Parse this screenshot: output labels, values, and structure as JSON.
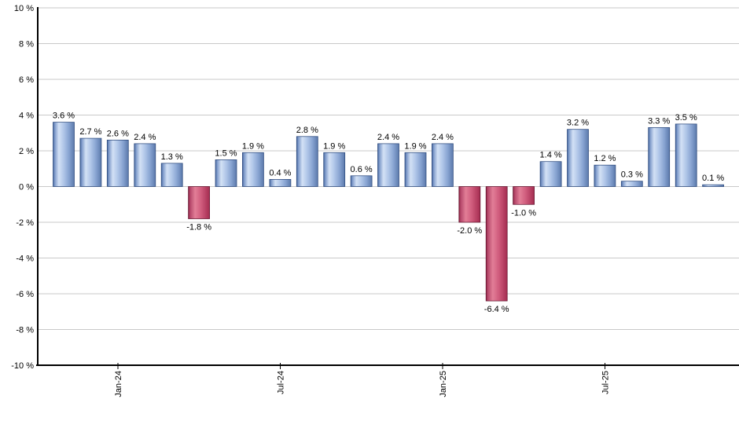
{
  "chart_data": {
    "type": "bar",
    "title": "",
    "xlabel": "",
    "ylabel": "",
    "unit": "%",
    "values": [
      3.6,
      2.7,
      2.6,
      2.4,
      1.3,
      -1.8,
      1.5,
      1.9,
      0.4,
      2.8,
      1.9,
      0.6,
      2.4,
      1.9,
      2.4,
      -2.0,
      -6.4,
      -1.0,
      1.4,
      3.2,
      1.2,
      0.3,
      3.3,
      3.5,
      0.1
    ],
    "bar_label_suffix": " %",
    "x_ticks": [
      {
        "index": 2,
        "label": "Jan-24"
      },
      {
        "index": 8,
        "label": "Jul-24"
      },
      {
        "index": 14,
        "label": "Jan-25"
      },
      {
        "index": 20,
        "label": "Jul-25"
      }
    ],
    "y_ticks": [
      -10,
      -8,
      -6,
      -4,
      -2,
      0,
      2,
      4,
      6,
      8,
      10
    ],
    "y_tick_suffix": " %",
    "ylim": [
      -10,
      10
    ],
    "grid": true,
    "legend": null,
    "colors": {
      "positive_gradient": [
        [
          "0%",
          "#44659c"
        ],
        [
          "8%",
          "#7e9aca"
        ],
        [
          "27%",
          "#d3e1f5"
        ],
        [
          "50%",
          "#b0c6e8"
        ],
        [
          "75%",
          "#87a3d1"
        ],
        [
          "100%",
          "#5b79ab"
        ]
      ],
      "positive_stroke": "#2d4a7d",
      "negative_gradient": [
        [
          "0%",
          "#89203f"
        ],
        [
          "8%",
          "#b5476a"
        ],
        [
          "32%",
          "#e27e97"
        ],
        [
          "60%",
          "#d05c7d"
        ],
        [
          "100%",
          "#a42c50"
        ]
      ],
      "negative_stroke": "#641731",
      "gridline": "#c9c9c9",
      "axis": "#000000",
      "label_text": "#000000"
    }
  }
}
